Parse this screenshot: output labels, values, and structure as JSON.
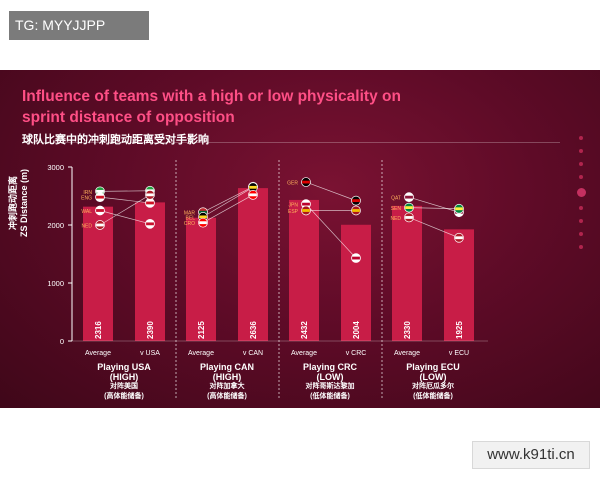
{
  "watermark_top": "TG: MYYJJPP",
  "watermark_bottom": "www.k91ti.cn",
  "title": "Influence of teams with a high or low physicality on sprint distance of opposition",
  "subtitle": "球队比赛中的冲刺跑动距离受对手影响",
  "ylabel_cn": "冲刺跑动距离",
  "ylabel_en": "ZS Distance (m)",
  "groups": [
    {
      "title": "Playing USA",
      "level": "(HIGH)",
      "cn": "对阵美国",
      "cn_level": "(高体能储备)"
    },
    {
      "title": "Playing CAN",
      "level": "(HIGH)",
      "cn": "对阵加拿大",
      "cn_level": "(高体能储备)"
    },
    {
      "title": "Playing CRC",
      "level": "(LOW)",
      "cn": "对阵哥斯达黎加",
      "cn_level": "(低体能储备)"
    },
    {
      "title": "Playing ECU",
      "level": "(LOW)",
      "cn": "对阵厄瓜多尔",
      "cn_level": "(低体能储备)"
    }
  ],
  "colors": {
    "bar": "#c81d47",
    "accent": "#ff4f86",
    "background": "#5e0b27"
  },
  "chart_data": {
    "type": "bar",
    "title": "Influence of teams with a high or low physicality on sprint distance of opposition",
    "ylabel": "ZS Distance (m)",
    "ylim": [
      0,
      3000
    ],
    "yticks": [
      0,
      1000,
      2000,
      3000
    ],
    "grid": false,
    "categories": [
      "Average",
      "v USA",
      "Average",
      "v CAN",
      "Average",
      "v CRC",
      "Average",
      "v ECU"
    ],
    "values": [
      2316,
      2390,
      2125,
      2636,
      2432,
      2004,
      2330,
      1925
    ],
    "team_markers": [
      {
        "group": 0,
        "teams": [
          {
            "code": "IRN",
            "average": 2580,
            "versus": 2590
          },
          {
            "code": "ENG",
            "average": 2480,
            "versus": 2380
          },
          {
            "code": "WAL",
            "average": 2250,
            "versus": 2020
          },
          {
            "code": "NED",
            "average": 2000,
            "versus": 2520
          }
        ]
      },
      {
        "group": 1,
        "teams": [
          {
            "code": "MAR",
            "average": 2220,
            "versus": 2660
          },
          {
            "code": "BEL",
            "average": 2140,
            "versus": 2650
          },
          {
            "code": "CRO",
            "average": 2040,
            "versus": 2520
          }
        ]
      },
      {
        "group": 2,
        "teams": [
          {
            "code": "GER",
            "average": 2740,
            "versus": 2420
          },
          {
            "code": "JPN",
            "average": 2360,
            "versus": 1430
          },
          {
            "code": "ESP",
            "average": 2250,
            "versus": 2250
          }
        ]
      },
      {
        "group": 3,
        "teams": [
          {
            "code": "QAT",
            "average": 2480,
            "versus": 2220
          },
          {
            "code": "SEN",
            "average": 2300,
            "versus": 2280
          },
          {
            "code": "NED",
            "average": 2130,
            "versus": 1780
          }
        ]
      }
    ]
  }
}
